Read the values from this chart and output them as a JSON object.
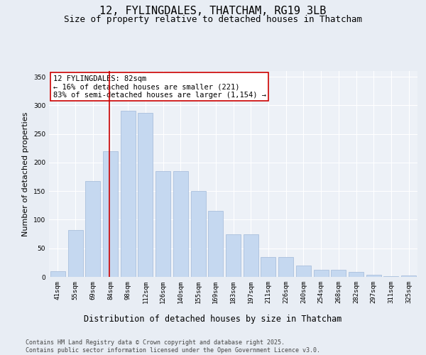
{
  "title": "12, FYLINGDALES, THATCHAM, RG19 3LB",
  "subtitle": "Size of property relative to detached houses in Thatcham",
  "xlabel": "Distribution of detached houses by size in Thatcham",
  "ylabel": "Number of detached properties",
  "categories": [
    "41sqm",
    "55sqm",
    "69sqm",
    "84sqm",
    "98sqm",
    "112sqm",
    "126sqm",
    "140sqm",
    "155sqm",
    "169sqm",
    "183sqm",
    "197sqm",
    "211sqm",
    "226sqm",
    "240sqm",
    "254sqm",
    "268sqm",
    "282sqm",
    "297sqm",
    "311sqm",
    "325sqm"
  ],
  "values": [
    10,
    82,
    168,
    220,
    290,
    287,
    185,
    185,
    150,
    115,
    75,
    75,
    35,
    35,
    20,
    13,
    13,
    9,
    4,
    1,
    3
  ],
  "bar_color": "#c5d8f0",
  "bar_edge_color": "#a0b8d8",
  "vline_color": "#cc0000",
  "annotation_text": "12 FYLINGDALES: 82sqm\n← 16% of detached houses are smaller (221)\n83% of semi-detached houses are larger (1,154) →",
  "annotation_box_color": "#ffffff",
  "annotation_box_edge_color": "#cc0000",
  "ylim": [
    0,
    360
  ],
  "yticks": [
    0,
    50,
    100,
    150,
    200,
    250,
    300,
    350
  ],
  "bg_color": "#e8edf4",
  "plot_bg_color": "#edf1f7",
  "footer": "Contains HM Land Registry data © Crown copyright and database right 2025.\nContains public sector information licensed under the Open Government Licence v3.0.",
  "title_fontsize": 11,
  "subtitle_fontsize": 9,
  "xlabel_fontsize": 8.5,
  "ylabel_fontsize": 8,
  "tick_fontsize": 6.5,
  "annotation_fontsize": 7.5,
  "footer_fontsize": 6
}
